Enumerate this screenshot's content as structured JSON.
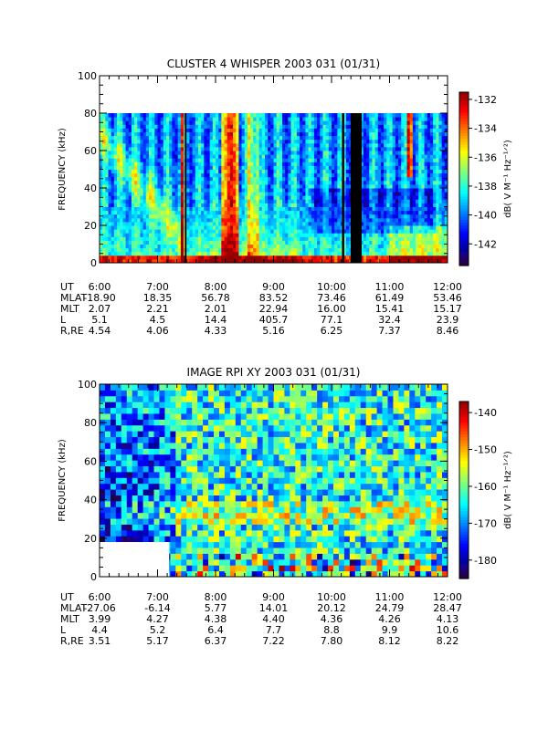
{
  "chart_data": [
    {
      "type": "heatmap",
      "title": "CLUSTER 4 WHISPER 2003 031 (01/31)",
      "ylabel": "FREQUENCY (kHz)",
      "ylim": [
        0,
        100
      ],
      "y_ticks": [
        "0",
        "20",
        "40",
        "60",
        "80",
        "100"
      ],
      "x_ticks": [
        "6:00",
        "7:00",
        "8:00",
        "9:00",
        "10:00",
        "11:00",
        "12:00"
      ],
      "x_range_hours": [
        6,
        12
      ],
      "data_top_kHz": 80,
      "colorbar": {
        "label": "dB( V M⁻¹ Hz⁻¹ᐟ²)",
        "range": [
          -143.5,
          -131.5
        ],
        "ticks": [
          "-132",
          "-134",
          "-136",
          "-138",
          "-140",
          "-142"
        ],
        "tick_values": [
          -132,
          -134,
          -136,
          -138,
          -140,
          -142
        ]
      },
      "ephemeris": [
        {
          "label": "UT",
          "values": [
            "6:00",
            "7:00",
            "8:00",
            "9:00",
            "10:00",
            "11:00",
            "12:00"
          ]
        },
        {
          "label": "MLAT",
          "values": [
            "-18.90",
            "18.35",
            "56.78",
            "83.52",
            "73.46",
            "61.49",
            "53.46"
          ]
        },
        {
          "label": "MLT",
          "values": [
            "2.07",
            "2.21",
            "2.01",
            "22.94",
            "16.00",
            "15.41",
            "15.17"
          ]
        },
        {
          "label": "L",
          "values": [
            "5.1",
            "4.5",
            "14.4",
            "405.7",
            "77.1",
            "32.4",
            "23.9"
          ]
        },
        {
          "label": "R,RE",
          "values": [
            "4.54",
            "4.06",
            "4.33",
            "5.16",
            "6.25",
            "7.37",
            "8.46"
          ]
        }
      ],
      "data_gaps_hours": [
        [
          7.47,
          7.5
        ],
        [
          10.18,
          10.22
        ],
        [
          10.33,
          10.52
        ]
      ]
    },
    {
      "type": "heatmap",
      "title": "IMAGE RPI XY 2003 031 (01/31)",
      "ylabel": "FREQUENCY (kHz)",
      "ylim": [
        0,
        100
      ],
      "y_ticks": [
        "0",
        "20",
        "40",
        "60",
        "80",
        "100"
      ],
      "x_ticks": [
        "6:00",
        "7:00",
        "8:00",
        "9:00",
        "10:00",
        "11:00",
        "12:00"
      ],
      "x_range_hours": [
        6,
        12
      ],
      "colorbar": {
        "label": "dB( V M⁻¹ Hz⁻¹ᐟ²)",
        "range": [
          -185,
          -137
        ],
        "ticks": [
          "-140",
          "-150",
          "-160",
          "-170",
          "-180"
        ],
        "tick_values": [
          -140,
          -150,
          -160,
          -170,
          -180
        ]
      },
      "ephemeris": [
        {
          "label": "UT",
          "values": [
            "6:00",
            "7:00",
            "8:00",
            "9:00",
            "10:00",
            "11:00",
            "12:00"
          ]
        },
        {
          "label": "MLAT",
          "values": [
            "-27.06",
            "-6.14",
            "5.77",
            "14.01",
            "20.12",
            "24.79",
            "28.47"
          ]
        },
        {
          "label": "MLT",
          "values": [
            "3.99",
            "4.27",
            "4.38",
            "4.40",
            "4.36",
            "4.26",
            "4.13"
          ]
        },
        {
          "label": "L",
          "values": [
            "4.4",
            "5.2",
            "6.4",
            "7.7",
            "8.8",
            "9.9",
            "10.6"
          ]
        },
        {
          "label": "R,RE",
          "values": [
            "3.51",
            "5.17",
            "6.37",
            "7.22",
            "7.80",
            "8.12",
            "8.22"
          ]
        }
      ],
      "no_data_block": {
        "hours": [
          6,
          7.2
        ],
        "kHz": [
          0,
          18
        ]
      }
    }
  ]
}
